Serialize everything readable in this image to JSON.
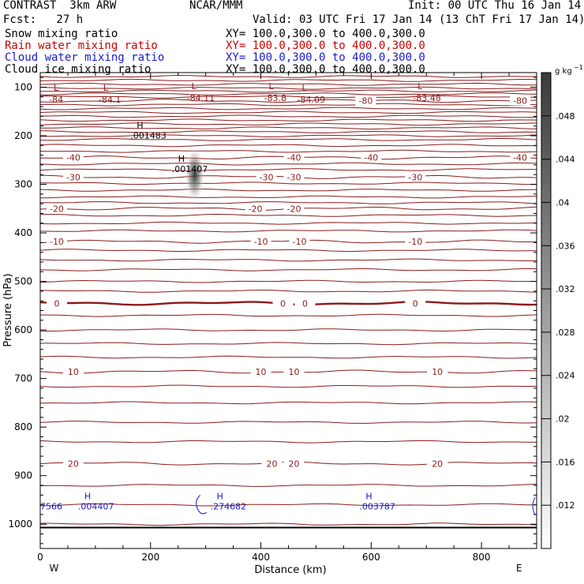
{
  "header": {
    "model": "CONTRAST  3km ARW",
    "org": "NCAR/MMM",
    "init": "Init: 00 UTC Thu 16 Jan 14",
    "fcst": "Fcst:   27 h",
    "valid": "Valid: 03 UTC Fri 17 Jan 14 (13 ChT Fri 17 Jan 14)",
    "fields": [
      {
        "name": "Snow mixing ratio",
        "xy": "XY= 100.0,300.0 to 400.0,300.0",
        "color": "#000000"
      },
      {
        "name": "Rain water mixing ratio",
        "xy": "XY= 100.0,300.0 to 400.0,300.0",
        "color": "#cc0000"
      },
      {
        "name": "Cloud water mixing ratio",
        "xy": "XY= 100.0,300.0 to 400.0,300.0",
        "color": "#1a1acc"
      },
      {
        "name": "Cloud ice mixing ratio",
        "xy": "XY= 100.0,300.0 to 400.0,300.0",
        "color": "#000000"
      }
    ]
  },
  "chart_data": {
    "type": "contour",
    "xlabel": "Distance (km)",
    "ylabel": "Pressure (hPa)",
    "xlim": [
      0,
      900
    ],
    "ylim": [
      1050,
      70
    ],
    "xticks": [
      0,
      200,
      400,
      600,
      800
    ],
    "yticks": [
      100,
      200,
      300,
      400,
      500,
      600,
      700,
      800,
      900,
      1000
    ],
    "end_labels": {
      "left": "W",
      "right": "E"
    },
    "colorbar": {
      "unit": "g kg",
      "unit_exp": "−1",
      "ticks": [
        ".012",
        ".016",
        ".02",
        ".024",
        ".028",
        ".032",
        ".036",
        ".04",
        ".044",
        ".048"
      ],
      "tick_values": [
        0.012,
        0.016,
        0.02,
        0.024,
        0.028,
        0.032,
        0.036,
        0.04,
        0.044,
        0.048
      ],
      "min": 0.008,
      "max": 0.052
    },
    "temperature_contours": {
      "color": "#8b1a1a",
      "levels": [
        {
          "value": -80,
          "label": "-80",
          "p": 128,
          "labels_at": [
            590,
            870
          ]
        },
        {
          "value": -40,
          "label": "-40",
          "p": 245,
          "labels_at": [
            60,
            460,
            600,
            870
          ]
        },
        {
          "value": -30,
          "label": "-30",
          "p": 285,
          "labels_at": [
            60,
            410,
            460,
            680
          ]
        },
        {
          "value": -20,
          "label": "-20",
          "p": 350,
          "labels_at": [
            30,
            390,
            460
          ]
        },
        {
          "value": -10,
          "label": "-10",
          "p": 418,
          "labels_at": [
            30,
            400,
            470,
            680
          ]
        },
        {
          "value": 0,
          "label": "0",
          "p": 545,
          "labels_at": [
            30,
            440,
            480,
            680
          ],
          "bold": true
        },
        {
          "value": 10,
          "label": "10",
          "p": 686,
          "labels_at": [
            60,
            400,
            460,
            720
          ]
        },
        {
          "value": 20,
          "label": "20",
          "p": 875,
          "labels_at": [
            60,
            420,
            460,
            720
          ]
        }
      ],
      "extra_lines_p": [
        78,
        86,
        94,
        102,
        108,
        114,
        120,
        136,
        144,
        152,
        160,
        168,
        176,
        184,
        192,
        200,
        208,
        220,
        232,
        258,
        270,
        298,
        312,
        326,
        338,
        364,
        380,
        396,
        436,
        456,
        476,
        500,
        520,
        570,
        600,
        628,
        656,
        716,
        750,
        790,
        830,
        920,
        960,
        1000
      ]
    },
    "minima_labels": [
      {
        "text": "L",
        "value": "-84",
        "x": 10,
        "p": 83
      },
      {
        "text": "L",
        "value": "-84.1",
        "x": 100,
        "p": 83
      },
      {
        "text": "L",
        "value": "-84.11",
        "x": 260,
        "p": 80
      },
      {
        "text": "L",
        "value": "-83.8",
        "x": 400,
        "p": 80
      },
      {
        "text": "L",
        "value": "-84.09",
        "x": 460,
        "p": 83
      },
      {
        "text": "L",
        "value": "-83.48",
        "x": 670,
        "p": 80
      }
    ],
    "snow_maxima": [
      {
        "label": "H",
        "value": ".001483",
        "x": 175,
        "p": 193
      },
      {
        "label": "H",
        "value": ".001407",
        "x": 250,
        "p": 262
      }
    ],
    "cloud_water_maxima": [
      {
        "label": "H",
        "value": ".004407",
        "x": 80,
        "p": 965
      },
      {
        "label": "H",
        "value": ".274682",
        "x": 320,
        "p": 965
      },
      {
        "label": "H",
        "value": ".003787",
        "x": 590,
        "p": 965
      },
      {
        "label": "",
        "value": "7566",
        "x": 0,
        "p": 965
      }
    ],
    "ice_patch": {
      "x": 280,
      "p": 280,
      "max": 0.048
    }
  }
}
